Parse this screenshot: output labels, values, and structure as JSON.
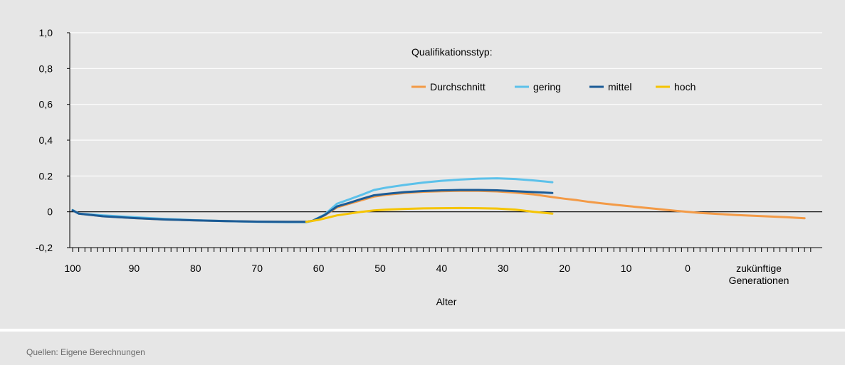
{
  "source": "Quellen: Eigene Berechnungen",
  "chart_data": {
    "type": "line",
    "xlabel": "Alter",
    "legend_title": "Qualifikationsstyp:",
    "legend_position": "top-right",
    "ylim": [
      -0.2,
      1.0
    ],
    "y_ticks": [
      "1,0",
      "0,8",
      "0,6",
      "0,4",
      "0.2",
      "0",
      "-0,2"
    ],
    "y_tick_values": [
      1.0,
      0.8,
      0.6,
      0.4,
      0.2,
      0.0,
      -0.2
    ],
    "x_ticks": [
      "100",
      "90",
      "80",
      "70",
      "60",
      "50",
      "40",
      "30",
      "20",
      "10",
      "0"
    ],
    "x_future_label": [
      "zukünftige",
      "Generationen"
    ],
    "xlim": [
      100,
      -20
    ],
    "series": [
      {
        "name": "Durchschnitt",
        "color": "#f39a46",
        "points": [
          [
            100,
            0.01
          ],
          [
            99,
            -0.01
          ],
          [
            95,
            -0.025
          ],
          [
            90,
            -0.035
          ],
          [
            85,
            -0.043
          ],
          [
            80,
            -0.048
          ],
          [
            75,
            -0.052
          ],
          [
            70,
            -0.055
          ],
          [
            65,
            -0.056
          ],
          [
            62,
            -0.056
          ],
          [
            61,
            -0.05
          ],
          [
            59,
            -0.02
          ],
          [
            57,
            0.025
          ],
          [
            55,
            0.045
          ],
          [
            53,
            0.065
          ],
          [
            51,
            0.085
          ],
          [
            49,
            0.095
          ],
          [
            46,
            0.105
          ],
          [
            43,
            0.112
          ],
          [
            40,
            0.115
          ],
          [
            37,
            0.117
          ],
          [
            34,
            0.117
          ],
          [
            31,
            0.114
          ],
          [
            28,
            0.107
          ],
          [
            25,
            0.097
          ],
          [
            22,
            0.082
          ],
          [
            20,
            0.073
          ],
          [
            18,
            0.065
          ],
          [
            16,
            0.055
          ],
          [
            14,
            0.047
          ],
          [
            12,
            0.04
          ],
          [
            10,
            0.033
          ],
          [
            8,
            0.026
          ],
          [
            5,
            0.016
          ],
          [
            2,
            0.006
          ],
          [
            0,
            0.0
          ],
          [
            -2,
            -0.006
          ],
          [
            -5,
            -0.012
          ],
          [
            -8,
            -0.018
          ],
          [
            -12,
            -0.024
          ],
          [
            -16,
            -0.03
          ],
          [
            -19,
            -0.036
          ]
        ]
      },
      {
        "name": "gering",
        "color": "#5cc1ea",
        "points": [
          [
            100,
            0.01
          ],
          [
            99,
            -0.01
          ],
          [
            95,
            -0.02
          ],
          [
            90,
            -0.03
          ],
          [
            85,
            -0.04
          ],
          [
            80,
            -0.047
          ],
          [
            75,
            -0.052
          ],
          [
            70,
            -0.056
          ],
          [
            65,
            -0.058
          ],
          [
            62,
            -0.058
          ],
          [
            61,
            -0.05
          ],
          [
            59,
            -0.015
          ],
          [
            57,
            0.045
          ],
          [
            55,
            0.07
          ],
          [
            53,
            0.095
          ],
          [
            51,
            0.122
          ],
          [
            49,
            0.135
          ],
          [
            46,
            0.15
          ],
          [
            43,
            0.163
          ],
          [
            40,
            0.173
          ],
          [
            37,
            0.18
          ],
          [
            34,
            0.185
          ],
          [
            31,
            0.187
          ],
          [
            28,
            0.183
          ],
          [
            25,
            0.175
          ],
          [
            22,
            0.165
          ]
        ]
      },
      {
        "name": "mittel",
        "color": "#1b5b96",
        "points": [
          [
            100,
            0.008
          ],
          [
            99,
            -0.01
          ],
          [
            95,
            -0.025
          ],
          [
            90,
            -0.035
          ],
          [
            85,
            -0.043
          ],
          [
            80,
            -0.048
          ],
          [
            75,
            -0.052
          ],
          [
            70,
            -0.055
          ],
          [
            65,
            -0.056
          ],
          [
            62,
            -0.056
          ],
          [
            61,
            -0.05
          ],
          [
            59,
            -0.018
          ],
          [
            57,
            0.03
          ],
          [
            55,
            0.05
          ],
          [
            53,
            0.072
          ],
          [
            51,
            0.092
          ],
          [
            49,
            0.1
          ],
          [
            46,
            0.11
          ],
          [
            43,
            0.116
          ],
          [
            40,
            0.12
          ],
          [
            37,
            0.122
          ],
          [
            34,
            0.122
          ],
          [
            31,
            0.12
          ],
          [
            28,
            0.115
          ],
          [
            25,
            0.11
          ],
          [
            22,
            0.105
          ]
        ]
      },
      {
        "name": "hoch",
        "color": "#f5c400",
        "points": [
          [
            62,
            -0.056
          ],
          [
            60,
            -0.045
          ],
          [
            57,
            -0.02
          ],
          [
            55,
            -0.01
          ],
          [
            53,
            0.0
          ],
          [
            51,
            0.008
          ],
          [
            49,
            0.012
          ],
          [
            46,
            0.016
          ],
          [
            43,
            0.019
          ],
          [
            40,
            0.02
          ],
          [
            37,
            0.021
          ],
          [
            34,
            0.02
          ],
          [
            31,
            0.018
          ],
          [
            28,
            0.012
          ],
          [
            25,
            0.0
          ],
          [
            22,
            -0.01
          ]
        ]
      }
    ]
  }
}
